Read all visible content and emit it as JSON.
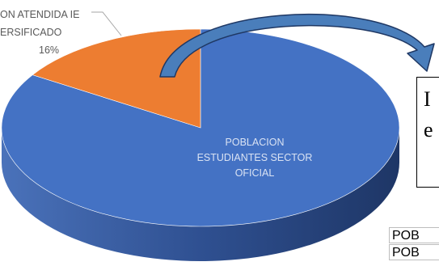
{
  "chart_data": {
    "type": "pie",
    "style": "3d",
    "slices": [
      {
        "label_lines": [
          "POBLACION",
          "ESTUDIANTES SECTOR",
          "OFICIAL"
        ],
        "value": 84,
        "value_label": "",
        "color": "#4472C4",
        "side_color": "#2E4E8C"
      },
      {
        "label_lines": [
          "ON ATENDIDA IE",
          "ERSIFICADO"
        ],
        "value": 16,
        "value_label": "16%",
        "color": "#ED7D31",
        "side_color": "#A8561F"
      }
    ]
  },
  "callout_box": {
    "line1": "I",
    "line2": "e"
  },
  "table": {
    "rows": [
      "POB",
      "POB"
    ]
  },
  "colors": {
    "arrow": "#4A7EBB",
    "arrow_stroke": "#1F3864",
    "leader": "#A6A6A6",
    "label_gray": "#595959"
  }
}
